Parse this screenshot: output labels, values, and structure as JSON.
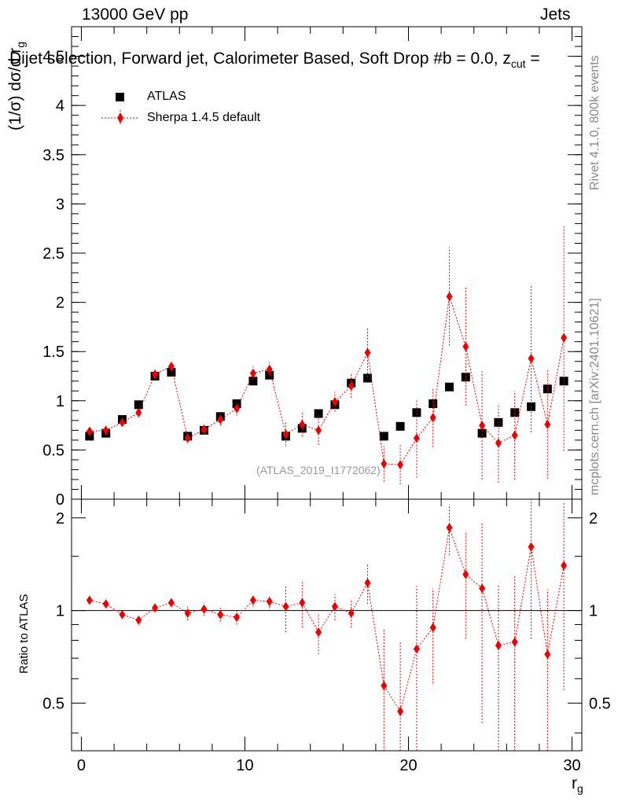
{
  "header": {
    "energy": "13000 GeV pp",
    "category": "Jets",
    "title": "Dijet selection, Forward jet, Calorimeter Based, Soft Drop #b = 0.0, z",
    "title_sub": "cut",
    "title_end": " ="
  },
  "side_labels": {
    "rivet": "Rivet 4.1.0,  800k events",
    "mcplots": "mcplots.cern.ch [arXiv:2401.10621]"
  },
  "watermark": "(ATLAS_2019_I1772062)",
  "axes": {
    "ylabel_main": "(1/σ) dσ/d r",
    "ylabel_main_sub": "g",
    "ylabel_ratio": "Ratio to ATLAS",
    "xlabel": "r",
    "xlabel_sub": "g"
  },
  "legend": {
    "atlas": "ATLAS",
    "sherpa": "Sherpa 1.4.5 default"
  },
  "chart_data": {
    "type": "scatter",
    "x": [
      0.5,
      1.5,
      2.5,
      3.5,
      4.5,
      5.5,
      6.5,
      7.5,
      8.5,
      9.5,
      10.5,
      11.5,
      12.5,
      13.5,
      14.5,
      15.5,
      16.5,
      17.5,
      18.5,
      19.5,
      20.5,
      21.5,
      22.5,
      23.5,
      24.5,
      25.5,
      26.5,
      27.5,
      28.5,
      29.5
    ],
    "xlim": [
      -0.6,
      30.6
    ],
    "main_ylim": [
      0,
      4.8
    ],
    "main_yticks": [
      "0",
      "0.5",
      "1",
      "1.5",
      "2",
      "2.5",
      "3",
      "3.5",
      "4",
      "4.5"
    ],
    "ratio_ylim": [
      0.35,
      2.3
    ],
    "ratio_yticks": [
      "0.5",
      "1",
      "2"
    ],
    "xticks": [
      "0",
      "10",
      "20",
      "30"
    ],
    "series": [
      {
        "name": "ATLAS",
        "color": "#000000",
        "marker": "square",
        "values": [
          0.64,
          0.67,
          0.81,
          0.96,
          1.25,
          1.29,
          0.64,
          0.7,
          0.84,
          0.97,
          1.2,
          1.26,
          0.64,
          0.72,
          0.87,
          0.96,
          1.18,
          1.23,
          0.64,
          0.74,
          0.88,
          0.97,
          1.14,
          1.24,
          0.67,
          0.78,
          0.88,
          0.94,
          1.12,
          1.2
        ]
      },
      {
        "name": "Sherpa 1.4.5 default",
        "color": "#ee0000",
        "marker": "diamond",
        "values": [
          0.69,
          0.7,
          0.78,
          0.88,
          1.27,
          1.35,
          0.62,
          0.71,
          0.81,
          0.92,
          1.28,
          1.32,
          0.66,
          0.76,
          0.7,
          0.99,
          1.15,
          1.49,
          0.36,
          0.35,
          0.62,
          0.83,
          2.06,
          1.55,
          0.75,
          0.57,
          0.65,
          1.43,
          0.76,
          1.64
        ],
        "errors": [
          0.04,
          0.04,
          0.04,
          0.04,
          0.05,
          0.05,
          0.05,
          0.05,
          0.06,
          0.07,
          0.07,
          0.07,
          0.12,
          0.12,
          0.15,
          0.1,
          0.12,
          0.25,
          0.18,
          0.2,
          0.4,
          0.3,
          0.5,
          0.6,
          0.55,
          0.4,
          0.45,
          0.75,
          0.55,
          1.15
        ]
      }
    ],
    "ratio_values": [
      1.08,
      1.05,
      0.97,
      0.93,
      1.02,
      1.06,
      0.98,
      1.01,
      0.97,
      0.95,
      1.08,
      1.07,
      1.03,
      1.06,
      0.85,
      1.03,
      0.98,
      1.23,
      0.57,
      0.47,
      0.75,
      0.88,
      1.86,
      1.31,
      1.18,
      0.77,
      0.79,
      1.61,
      0.72,
      1.4
    ],
    "ratio_errors": [
      0.03,
      0.03,
      0.03,
      0.03,
      0.03,
      0.03,
      0.05,
      0.05,
      0.05,
      0.05,
      0.05,
      0.05,
      0.18,
      0.18,
      0.13,
      0.1,
      0.1,
      0.18,
      0.3,
      0.32,
      0.45,
      0.3,
      0.35,
      0.5,
      0.75,
      0.45,
      0.5,
      0.8,
      0.45,
      0.85
    ]
  }
}
